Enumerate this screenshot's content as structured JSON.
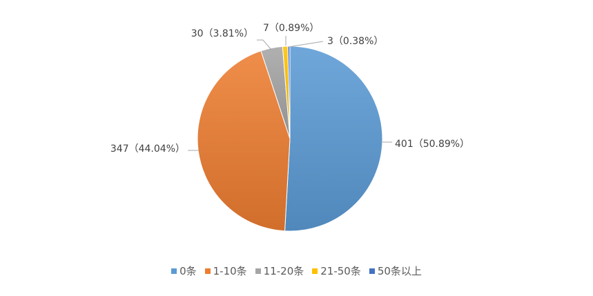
{
  "chart_data": {
    "type": "pie",
    "title": "",
    "legend_position": "bottom",
    "slices": [
      {
        "category": "0条",
        "value": 401,
        "label": "401（50.89%）",
        "color": "#5b9bd5"
      },
      {
        "category": "1-10条",
        "value": 347,
        "label": "347（44.04%）",
        "color": "#ed7d31"
      },
      {
        "category": "11-20条",
        "value": 30,
        "label": "30（3.81%）",
        "color": "#a5a5a5"
      },
      {
        "category": "21-50条",
        "value": 7,
        "label": "7（0.89%）",
        "color": "#ffc000"
      },
      {
        "category": "50条以上",
        "value": 3,
        "label": "3（0.38%）",
        "color": "#4472c4"
      }
    ]
  }
}
